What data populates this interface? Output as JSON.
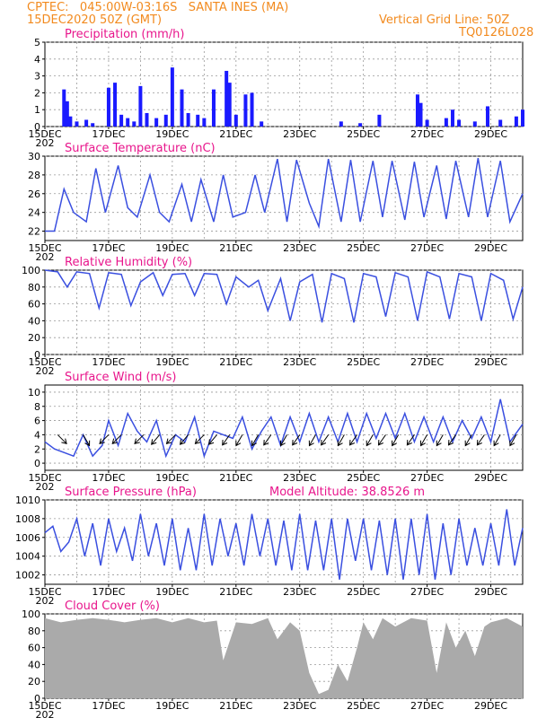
{
  "header": {
    "line1_left": "CPTEC:   045:00W-03:16S   SANTA INES (MA)",
    "line2_left": "15DEC2020 50Z (GMT)",
    "line1_right": "Vertical Grid Line: 50Z",
    "line2_right": "TQ0126L028"
  },
  "x_axis": {
    "labels": [
      "15DEC",
      "17DEC",
      "19DEC",
      "21DEC",
      "23DEC",
      "25DEC",
      "27DEC",
      "29DEC"
    ],
    "year_fragment": "202",
    "start_day": 15,
    "end_day": 30
  },
  "colors": {
    "line": "#3a4fe0",
    "bar": "#1a1aff",
    "cloud": "#aaaaaa",
    "title": "#e8168c",
    "header": "#f28a1e",
    "arrow": "#000000"
  },
  "chart_data": [
    {
      "id": "precip",
      "type": "bar",
      "title": "Precipitation (mm/h)",
      "ylim": [
        0,
        5
      ],
      "yticks": [
        "0",
        "1",
        "2",
        "3",
        "4",
        "5"
      ],
      "x": [
        15.6,
        15.7,
        15.8,
        16.0,
        16.3,
        16.5,
        17.0,
        17.2,
        17.4,
        17.6,
        17.8,
        18.0,
        18.2,
        18.5,
        18.8,
        19.0,
        19.3,
        19.5,
        19.8,
        20.0,
        20.3,
        20.7,
        20.8,
        21.0,
        21.3,
        21.5,
        21.8,
        24.3,
        24.9,
        25.5,
        26.7,
        26.8,
        27.0,
        27.6,
        27.8,
        28.0,
        28.5,
        28.9,
        29.3,
        29.8,
        30.0
      ],
      "values": [
        2.2,
        1.5,
        0.6,
        0.3,
        0.4,
        0.2,
        2.3,
        2.6,
        0.7,
        0.5,
        0.3,
        2.4,
        0.8,
        0.5,
        0.7,
        3.5,
        2.2,
        0.8,
        0.7,
        0.5,
        2.2,
        3.3,
        2.6,
        0.7,
        1.9,
        2.0,
        0.3,
        0.3,
        0.2,
        0.7,
        1.9,
        1.4,
        0.4,
        0.5,
        1.0,
        0.4,
        0.3,
        1.2,
        0.4,
        0.6,
        1.0
      ]
    },
    {
      "id": "temp",
      "type": "line",
      "title": "Surface Temperature (nC)",
      "ylim": [
        21,
        30
      ],
      "yticks": [
        "22",
        "24",
        "26",
        "28",
        "30"
      ],
      "x": [
        15.0,
        15.3,
        15.6,
        15.9,
        16.3,
        16.6,
        16.9,
        17.3,
        17.6,
        17.9,
        18.3,
        18.6,
        18.9,
        19.3,
        19.6,
        19.9,
        20.3,
        20.6,
        20.9,
        21.3,
        21.6,
        21.9,
        22.3,
        22.6,
        22.9,
        23.3,
        23.6,
        23.9,
        24.3,
        24.6,
        24.9,
        25.3,
        25.6,
        25.9,
        26.3,
        26.6,
        26.9,
        27.3,
        27.6,
        27.9,
        28.3,
        28.6,
        28.9,
        29.3,
        29.6,
        30.0
      ],
      "values": [
        22.0,
        22.0,
        26.5,
        24.0,
        23.0,
        28.7,
        24.0,
        29.0,
        24.5,
        23.5,
        28.0,
        24.0,
        23.0,
        27.0,
        23.0,
        27.5,
        23.0,
        28.0,
        23.5,
        24.0,
        28.0,
        24.0,
        29.7,
        23.0,
        29.6,
        25.0,
        22.5,
        29.7,
        23.0,
        29.6,
        23.0,
        29.5,
        23.5,
        29.5,
        23.2,
        29.4,
        23.5,
        29.0,
        23.3,
        29.5,
        23.5,
        29.8,
        23.5,
        29.5,
        23.0,
        26.0
      ]
    },
    {
      "id": "rh",
      "type": "line",
      "title": "Relative Humidity (%)",
      "ylim": [
        0,
        100
      ],
      "yticks": [
        "0",
        "20",
        "40",
        "60",
        "80",
        "100"
      ],
      "x": [
        15.0,
        15.4,
        15.7,
        16.0,
        16.4,
        16.7,
        17.0,
        17.4,
        17.7,
        18.0,
        18.4,
        18.7,
        19.0,
        19.4,
        19.7,
        20.0,
        20.4,
        20.7,
        21.0,
        21.4,
        21.7,
        22.0,
        22.4,
        22.7,
        23.0,
        23.4,
        23.7,
        24.0,
        24.4,
        24.7,
        25.0,
        25.4,
        25.7,
        26.0,
        26.4,
        26.7,
        27.0,
        27.4,
        27.7,
        28.0,
        28.4,
        28.7,
        29.0,
        29.4,
        29.7,
        30.0
      ],
      "values": [
        100,
        98,
        80,
        98,
        96,
        55,
        97,
        95,
        58,
        86,
        97,
        70,
        95,
        96,
        70,
        96,
        95,
        60,
        92,
        80,
        88,
        52,
        90,
        40,
        86,
        95,
        38,
        96,
        90,
        38,
        96,
        92,
        45,
        97,
        92,
        40,
        98,
        92,
        42,
        96,
        92,
        40,
        96,
        88,
        42,
        80
      ]
    },
    {
      "id": "wind",
      "type": "line",
      "title": "Surface Wind (m/s)",
      "ylim": [
        -1,
        11
      ],
      "yticks": [
        "0",
        "2",
        "4",
        "6",
        "8",
        "10"
      ],
      "x": [
        15.0,
        15.3,
        15.6,
        15.9,
        16.2,
        16.5,
        16.8,
        17.0,
        17.3,
        17.6,
        17.9,
        18.2,
        18.5,
        18.8,
        19.1,
        19.4,
        19.7,
        20.0,
        20.3,
        20.6,
        20.9,
        21.2,
        21.5,
        21.8,
        22.1,
        22.4,
        22.7,
        23.0,
        23.3,
        23.6,
        23.9,
        24.2,
        24.5,
        24.8,
        25.1,
        25.4,
        25.7,
        26.0,
        26.3,
        26.6,
        26.9,
        27.2,
        27.5,
        27.8,
        28.1,
        28.4,
        28.7,
        29.0,
        29.3,
        29.6,
        30.0
      ],
      "values": [
        3.0,
        2.0,
        1.5,
        1.0,
        4.0,
        1.0,
        2.5,
        6.0,
        2.5,
        7.0,
        4.5,
        3.0,
        6.0,
        1.0,
        4.0,
        3.0,
        6.5,
        1.0,
        4.5,
        4.0,
        3.5,
        6.5,
        2.0,
        4.5,
        6.5,
        2.5,
        6.5,
        3.0,
        7.0,
        3.0,
        6.5,
        3.0,
        7.0,
        3.0,
        7.0,
        3.5,
        7.0,
        3.5,
        7.0,
        3.0,
        6.5,
        3.0,
        6.5,
        3.0,
        6.0,
        3.5,
        6.5,
        3.0,
        9.0,
        3.0,
        5.5
      ],
      "arrows_x": [
        15.4,
        16.2,
        17.0,
        17.4,
        18.1,
        18.6,
        19.1,
        19.5,
        20.0,
        20.4,
        20.8,
        21.2,
        21.7,
        22.1,
        22.6,
        23.0,
        23.5,
        23.9,
        24.4,
        24.8,
        25.3,
        25.7,
        26.1,
        26.6,
        27.0,
        27.5,
        27.9,
        28.4,
        28.8,
        29.3,
        29.8
      ],
      "arrows_dir_deg": [
        315,
        300,
        225,
        225,
        225,
        230,
        225,
        230,
        225,
        230,
        235,
        240,
        240,
        235,
        240,
        235,
        240,
        235,
        240,
        235,
        240,
        235,
        240,
        235,
        240,
        240,
        235,
        240,
        235,
        240,
        240
      ]
    },
    {
      "id": "pressure",
      "type": "line",
      "title": "Surface Pressure (hPa)",
      "annotation": "Model Altitude: 38.8526  m",
      "ylim": [
        1001,
        1010
      ],
      "yticks": [
        "1002",
        "1004",
        "1006",
        "1008",
        "1010"
      ],
      "x": [
        15.0,
        15.25,
        15.5,
        15.75,
        16.0,
        16.25,
        16.5,
        16.75,
        17.0,
        17.25,
        17.5,
        17.75,
        18.0,
        18.25,
        18.5,
        18.75,
        19.0,
        19.25,
        19.5,
        19.75,
        20.0,
        20.25,
        20.5,
        20.75,
        21.0,
        21.25,
        21.5,
        21.75,
        22.0,
        22.25,
        22.5,
        22.75,
        23.0,
        23.25,
        23.5,
        23.75,
        24.0,
        24.25,
        24.5,
        24.75,
        25.0,
        25.25,
        25.5,
        25.75,
        26.0,
        26.25,
        26.5,
        26.75,
        27.0,
        27.25,
        27.5,
        27.75,
        28.0,
        28.25,
        28.5,
        28.75,
        29.0,
        29.25,
        29.5,
        29.75,
        30.0
      ],
      "values": [
        1006.5,
        1007.2,
        1004.5,
        1005.5,
        1008.0,
        1004.0,
        1007.5,
        1003.0,
        1008.0,
        1004.5,
        1007.0,
        1003.5,
        1008.5,
        1004.0,
        1007.5,
        1003.0,
        1008.0,
        1002.5,
        1007.0,
        1002.5,
        1008.5,
        1003.0,
        1008.0,
        1004.0,
        1007.5,
        1003.0,
        1008.5,
        1004.0,
        1008.0,
        1003.0,
        1007.8,
        1002.5,
        1008.5,
        1002.5,
        1007.8,
        1002.5,
        1008.0,
        1001.5,
        1008.0,
        1003.5,
        1008.0,
        1002.5,
        1007.8,
        1002.0,
        1008.0,
        1001.5,
        1008.0,
        1002.0,
        1008.5,
        1001.5,
        1007.5,
        1002.0,
        1008.0,
        1003.0,
        1007.0,
        1003.0,
        1007.5,
        1003.0,
        1009.0,
        1003.0,
        1007.0
      ]
    },
    {
      "id": "cloud",
      "type": "area",
      "title": "Cloud Cover (%)",
      "ylim": [
        0,
        100
      ],
      "yticks": [
        "0",
        "20",
        "40",
        "60",
        "80",
        "100"
      ],
      "x": [
        15.0,
        15.5,
        16.0,
        16.5,
        17.0,
        17.5,
        18.0,
        18.5,
        19.0,
        19.5,
        20.0,
        20.4,
        20.6,
        21.0,
        21.5,
        22.0,
        22.3,
        22.7,
        23.0,
        23.3,
        23.6,
        23.9,
        24.2,
        24.5,
        24.8,
        25.0,
        25.3,
        25.6,
        26.0,
        26.5,
        27.0,
        27.3,
        27.6,
        27.9,
        28.2,
        28.5,
        28.8,
        29.0,
        29.5,
        30.0
      ],
      "values": [
        95,
        90,
        93,
        95,
        93,
        90,
        93,
        95,
        90,
        95,
        90,
        92,
        45,
        90,
        88,
        95,
        70,
        90,
        80,
        30,
        5,
        10,
        40,
        20,
        60,
        90,
        70,
        95,
        85,
        95,
        92,
        30,
        90,
        60,
        80,
        50,
        85,
        90,
        95,
        85
      ]
    }
  ]
}
